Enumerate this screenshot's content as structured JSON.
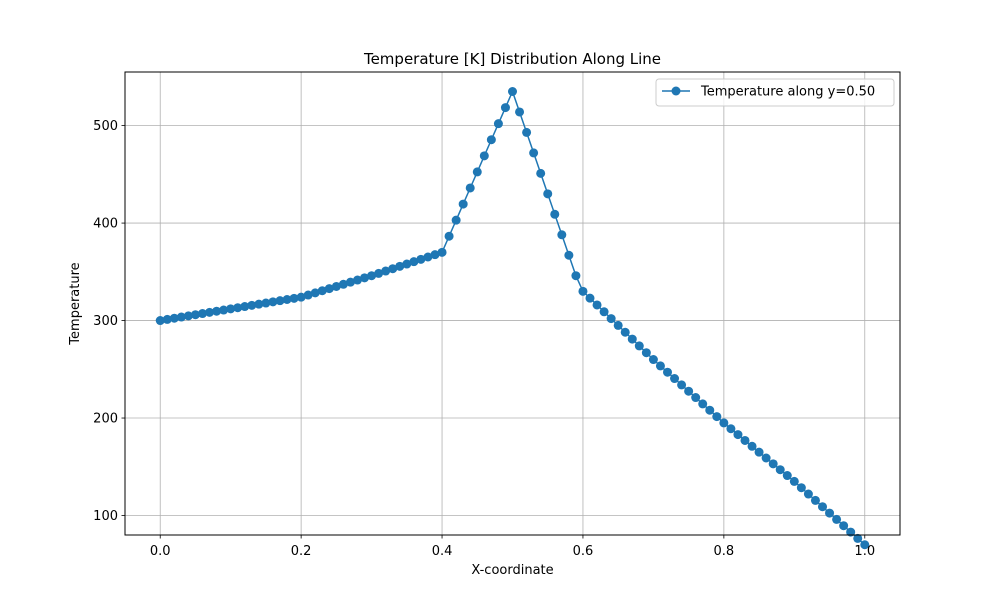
{
  "chart_data": {
    "type": "line",
    "title": "Temperature [K] Distribution Along Line",
    "xlabel": "X-coordinate",
    "ylabel": "Temperature",
    "xlim": [
      -0.05,
      1.05
    ],
    "ylim": [
      80,
      555
    ],
    "x_ticks": [
      0.0,
      0.2,
      0.4,
      0.6,
      0.8,
      1.0
    ],
    "x_tick_labels": [
      "0.0",
      "0.2",
      "0.4",
      "0.6",
      "0.8",
      "1.0"
    ],
    "y_ticks": [
      100,
      200,
      300,
      400,
      500
    ],
    "y_tick_labels": [
      "100",
      "200",
      "300",
      "400",
      "500"
    ],
    "grid": true,
    "legend_position": "top-right",
    "series": [
      {
        "name": "Temperature along y=0.50",
        "color": "#1f77b4",
        "marker": "circle",
        "x": [
          0.0,
          0.01,
          0.02,
          0.03,
          0.04,
          0.05,
          0.06,
          0.07,
          0.08,
          0.09,
          0.1,
          0.11,
          0.12,
          0.13,
          0.14,
          0.15,
          0.16,
          0.17,
          0.18,
          0.19,
          0.2,
          0.21,
          0.22,
          0.23,
          0.24,
          0.25,
          0.26,
          0.27,
          0.28,
          0.29,
          0.3,
          0.31,
          0.32,
          0.33,
          0.34,
          0.35,
          0.36,
          0.37,
          0.38,
          0.39,
          0.4,
          0.41,
          0.42,
          0.43,
          0.44,
          0.45,
          0.46,
          0.47,
          0.48,
          0.49,
          0.5,
          0.51,
          0.52,
          0.53,
          0.54,
          0.55,
          0.56,
          0.57,
          0.58,
          0.59,
          0.6,
          0.61,
          0.62,
          0.63,
          0.64,
          0.65,
          0.66,
          0.67,
          0.68,
          0.69,
          0.7,
          0.71,
          0.72,
          0.73,
          0.74,
          0.75,
          0.76,
          0.77,
          0.78,
          0.79,
          0.8,
          0.81,
          0.82,
          0.83,
          0.84,
          0.85,
          0.86,
          0.87,
          0.88,
          0.89,
          0.9,
          0.91,
          0.92,
          0.93,
          0.94,
          0.95,
          0.96,
          0.97,
          0.98,
          0.99,
          1.0
        ],
        "y": [
          300,
          301.2,
          302.4,
          303.6,
          304.8,
          306,
          307.2,
          308.4,
          309.6,
          310.8,
          312,
          313.2,
          314.4,
          315.6,
          316.8,
          318,
          319.2,
          320.4,
          321.6,
          322.8,
          324,
          326.2,
          328.4,
          330.6,
          332.8,
          335,
          337.2,
          339.4,
          341.6,
          343.8,
          346,
          348.4,
          350.8,
          353.2,
          355.6,
          358,
          360.4,
          362.8,
          365.2,
          367.6,
          370,
          386.5,
          403,
          419.5,
          436,
          452.5,
          469,
          485.5,
          502,
          518.5,
          535,
          514,
          493,
          472,
          451,
          430,
          409,
          388,
          367,
          346,
          330,
          323,
          316,
          309,
          302,
          295,
          288,
          281,
          274,
          267,
          260,
          253.5,
          247,
          240.5,
          234,
          227.5,
          221,
          214.5,
          208,
          201.5,
          195,
          189,
          183,
          177,
          171,
          165,
          159,
          153,
          147,
          141,
          135,
          128.5,
          122,
          115.5,
          109,
          102.5,
          96,
          89.5,
          83,
          76.5,
          70
        ]
      }
    ]
  }
}
